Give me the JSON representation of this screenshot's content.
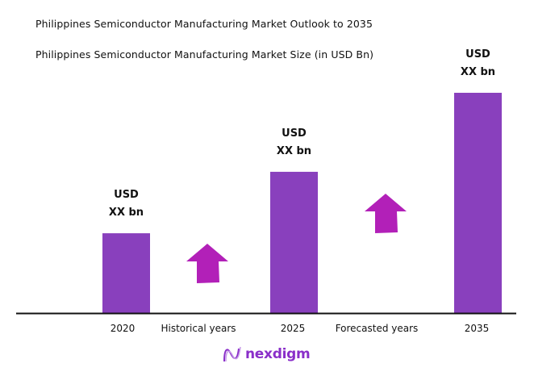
{
  "header": {
    "title": "Philippines Semiconductor Manufacturing Market Outlook to 2035",
    "subtitle": "Philippines Semiconductor Manufacturing Market Size (in USD Bn)"
  },
  "chart_data": {
    "type": "bar",
    "title": "Philippines Semiconductor Manufacturing Market Size (in USD Bn)",
    "categories": [
      "2020",
      "2025",
      "2035"
    ],
    "values": [
      1.0,
      1.77,
      2.76
    ],
    "data_labels": [
      [
        "USD",
        "XX bn"
      ],
      [
        "USD",
        "XX bn"
      ],
      [
        "USD",
        "XX bn"
      ]
    ],
    "period_labels": [
      "Historical years",
      "Forecasted years"
    ],
    "bar_color": "#8940bd",
    "arrow_color": "#b220b8",
    "grid": false,
    "ylim": [
      0,
      2.76
    ]
  },
  "logo": {
    "text": "nexdigm",
    "color": "#8a2fc9"
  }
}
